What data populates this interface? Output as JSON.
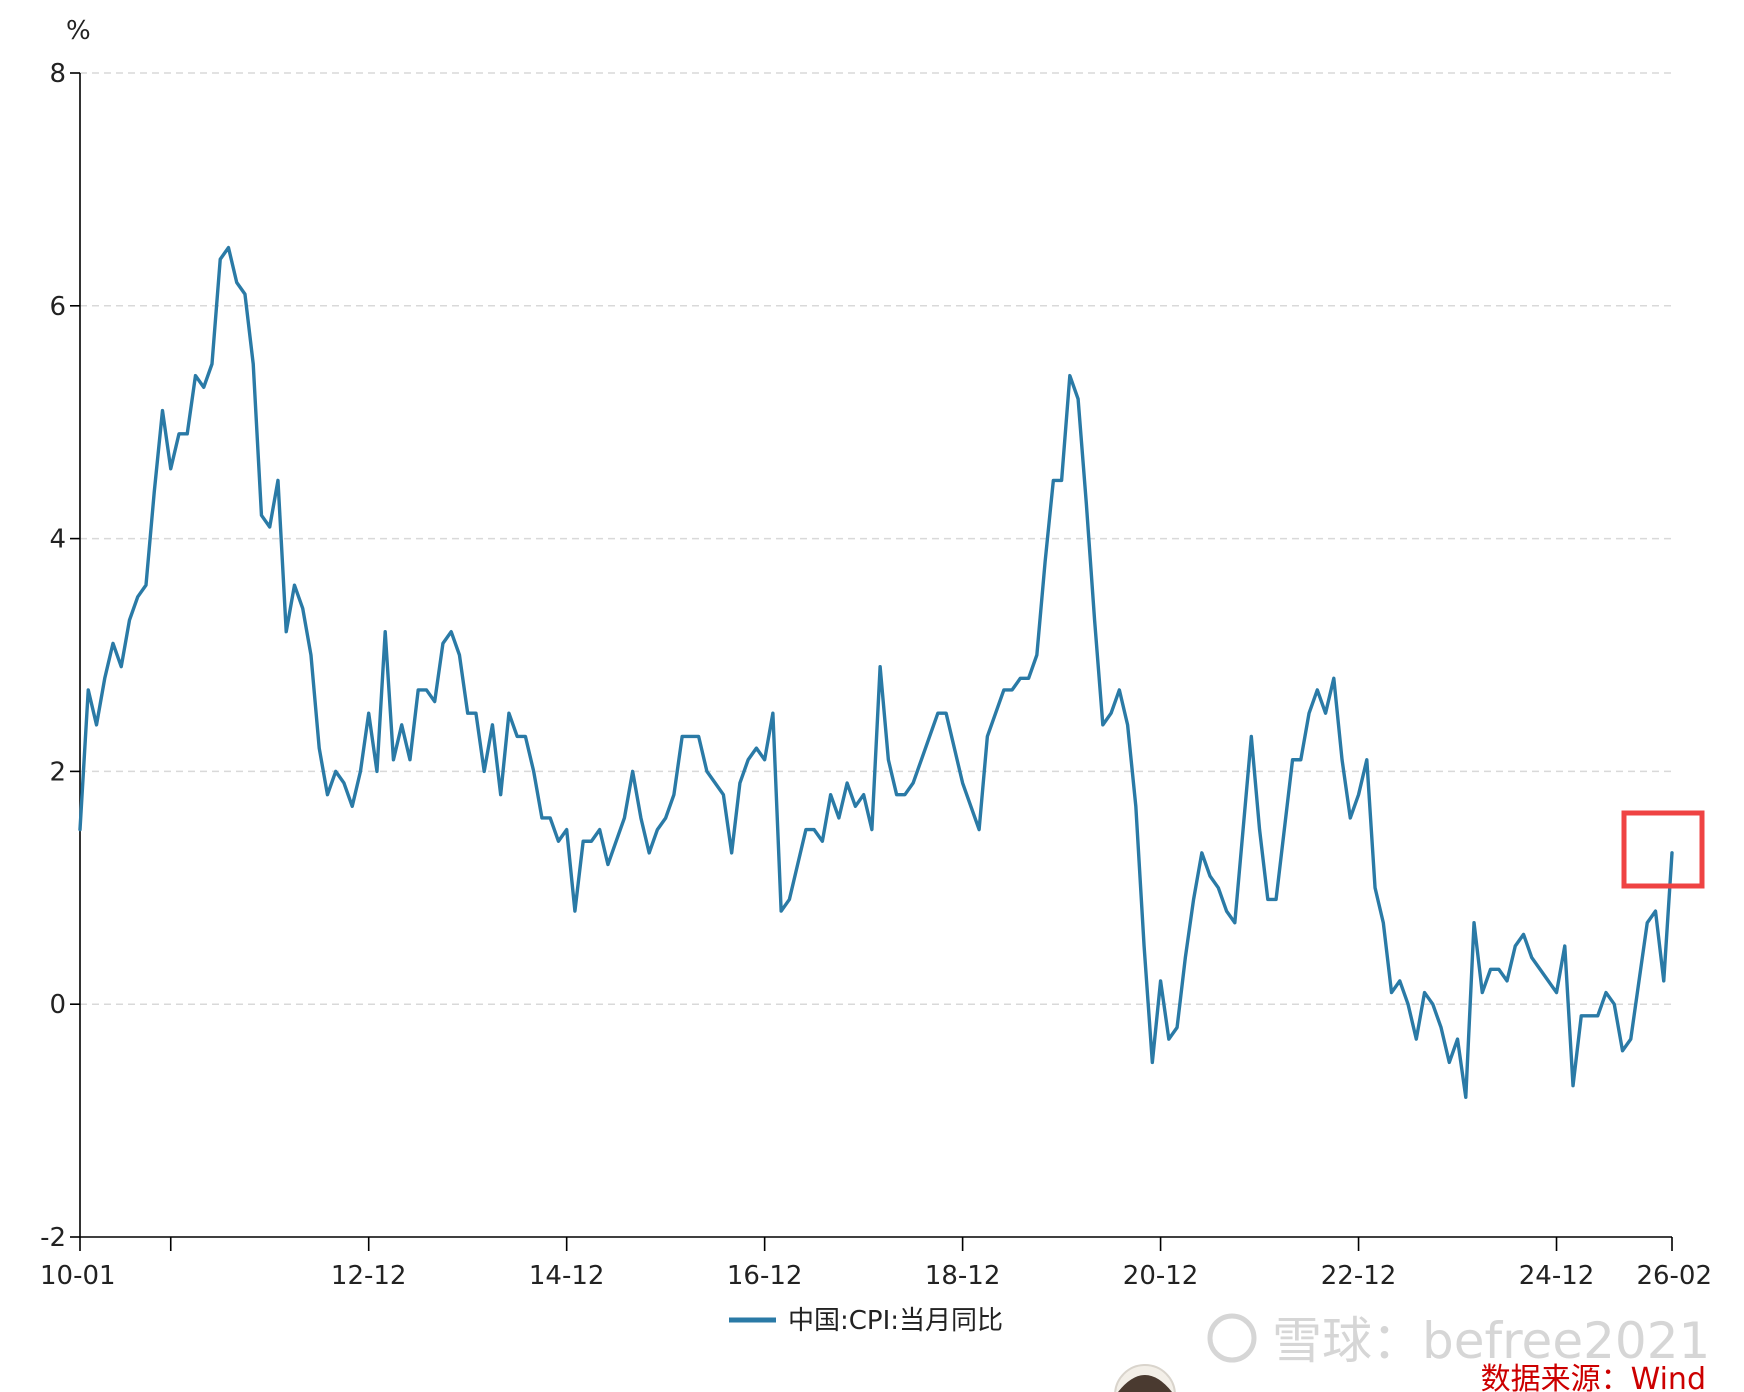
{
  "chart_data": {
    "type": "line",
    "unit": "%",
    "x_tick_labels": [
      "10-01",
      "12-12",
      "14-12",
      "16-12",
      "18-12",
      "20-12",
      "22-12",
      "24-12",
      "26-02"
    ],
    "y_tick_labels": [
      "8",
      "6",
      "4",
      "2",
      "0",
      "-2"
    ],
    "ylim": [
      -2,
      8
    ],
    "y_ticks": [
      8,
      6,
      4,
      2,
      0,
      -2
    ],
    "grid": "horizontal-dashed",
    "legend_position": "bottom-center",
    "series": [
      {
        "name": "中国:CPI:当月同比",
        "color": "#2a7aa6",
        "start": "2010-01",
        "values": [
          1.5,
          2.7,
          2.4,
          2.8,
          3.1,
          2.9,
          3.3,
          3.5,
          3.6,
          4.4,
          5.1,
          4.6,
          4.9,
          4.9,
          5.4,
          5.3,
          5.5,
          6.4,
          6.5,
          6.2,
          6.1,
          5.5,
          4.2,
          4.1,
          4.5,
          3.2,
          3.6,
          3.4,
          3.0,
          2.2,
          1.8,
          2.0,
          1.9,
          1.7,
          2.0,
          2.5,
          2.0,
          3.2,
          2.1,
          2.4,
          2.1,
          2.7,
          2.7,
          2.6,
          3.1,
          3.2,
          3.0,
          2.5,
          2.5,
          2.0,
          2.4,
          1.8,
          2.5,
          2.3,
          2.3,
          2.0,
          1.6,
          1.6,
          1.4,
          1.5,
          0.8,
          1.4,
          1.4,
          1.5,
          1.2,
          1.4,
          1.6,
          2.0,
          1.6,
          1.3,
          1.5,
          1.6,
          1.8,
          2.3,
          2.3,
          2.3,
          2.0,
          1.9,
          1.8,
          1.3,
          1.9,
          2.1,
          2.2,
          2.1,
          2.5,
          0.8,
          0.9,
          1.2,
          1.5,
          1.5,
          1.4,
          1.8,
          1.6,
          1.9,
          1.7,
          1.8,
          1.5,
          2.9,
          2.1,
          1.8,
          1.8,
          1.9,
          2.1,
          2.3,
          2.5,
          2.5,
          2.2,
          1.9,
          1.7,
          1.5,
          2.3,
          2.5,
          2.7,
          2.7,
          2.8,
          2.8,
          3.0,
          3.8,
          4.5,
          4.5,
          5.4,
          5.2,
          4.3,
          3.3,
          2.4,
          2.5,
          2.7,
          2.4,
          1.7,
          0.5,
          -0.5,
          0.2,
          -0.3,
          -0.2,
          0.4,
          0.9,
          1.3,
          1.1,
          1.0,
          0.8,
          0.7,
          1.5,
          2.3,
          1.5,
          0.9,
          0.9,
          1.5,
          2.1,
          2.1,
          2.5,
          2.7,
          2.5,
          2.8,
          2.1,
          1.6,
          1.8,
          2.1,
          1.0,
          0.7,
          0.1,
          0.2,
          0.0,
          -0.3,
          0.1,
          0.0,
          -0.2,
          -0.5,
          -0.3,
          -0.8,
          0.7,
          0.1,
          0.3,
          0.3,
          0.2,
          0.5,
          0.6,
          0.4,
          0.3,
          0.2,
          0.1,
          0.5,
          -0.7,
          -0.1,
          -0.1,
          -0.1,
          0.1,
          0.0,
          -0.4,
          -0.3,
          0.2,
          0.7,
          0.8,
          0.2,
          1.3
        ]
      }
    ]
  },
  "watermark": "雪球：befree2021",
  "source": "数据来源：Wind"
}
